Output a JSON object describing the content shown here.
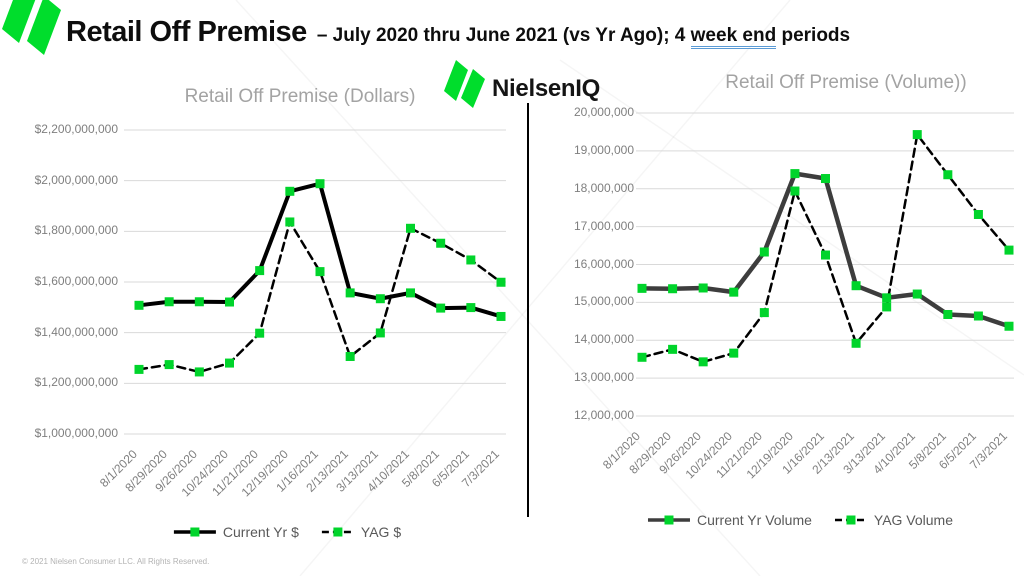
{
  "header": {
    "title": "Retail Off Premise",
    "subtitle_prefix": "– July 2020 thru June 2021 (vs Yr Ago); 4 ",
    "subtitle_underlined": "week end",
    "subtitle_suffix": " periods",
    "brand": "NielsenIQ"
  },
  "footer": {
    "copyright": "© 2021 Nielsen Consumer LLC. All Rights Reserved."
  },
  "icons": {
    "corner_mark": "nielsen-double-leaf-icon",
    "brand_mark": "nielsen-double-leaf-icon"
  },
  "colors": {
    "brand_green": "#00dd2c",
    "marker_green": "#00d42b",
    "grid": "#d9d9d9",
    "axis_text": "#7f7f7f",
    "title_text": "#a3a3a3",
    "legend_text": "#595959",
    "divider": "#000000"
  },
  "chart_data": [
    {
      "type": "line",
      "title": "Retail Off Premise (Dollars)",
      "categories": [
        "8/1/2020",
        "8/29/2020",
        "9/26/2020",
        "10/24/2020",
        "11/21/2020",
        "12/19/2020",
        "1/16/2021",
        "2/13/2021",
        "3/13/2021",
        "4/10/2021",
        "5/8/2021",
        "6/5/2021",
        "7/3/2021"
      ],
      "ylim": [
        1000000000,
        2200000000
      ],
      "grid": true,
      "legend_position": "bottom",
      "yticks": [
        {
          "value": 1000000000,
          "label": "$1,000,000,000"
        },
        {
          "value": 1200000000,
          "label": "$1,200,000,000"
        },
        {
          "value": 1400000000,
          "label": "$1,400,000,000"
        },
        {
          "value": 1600000000,
          "label": "$1,600,000,000"
        },
        {
          "value": 1800000000,
          "label": "$1,800,000,000"
        },
        {
          "value": 2000000000,
          "label": "$2,000,000,000"
        },
        {
          "value": 2200000000,
          "label": "$2,200,000,000"
        }
      ],
      "series": [
        {
          "name": "Current Yr $",
          "dash": "solid",
          "color": "#000000",
          "width": 4,
          "values": [
            1508000000,
            1522000000,
            1522000000,
            1521000000,
            1645000000,
            1958000000,
            1988000000,
            1557000000,
            1534000000,
            1557000000,
            1497000000,
            1499000000,
            1464000000
          ]
        },
        {
          "name": "YAG $",
          "dash": "dashed",
          "color": "#000000",
          "width": 2.5,
          "values": [
            1255000000,
            1274000000,
            1245000000,
            1280000000,
            1398000000,
            1837000000,
            1641000000,
            1306000000,
            1399000000,
            1812000000,
            1753000000,
            1687000000,
            1599000000
          ]
        }
      ]
    },
    {
      "type": "line",
      "title": "Retail Off Premise (Volume))",
      "categories": [
        "8/1/2020",
        "8/29/2020",
        "9/26/2020",
        "10/24/2020",
        "11/21/2020",
        "12/19/2020",
        "1/16/2021",
        "2/13/2021",
        "3/13/2021",
        "4/10/2021",
        "5/8/2021",
        "6/5/2021",
        "7/3/2021"
      ],
      "ylim": [
        12000000,
        20000000
      ],
      "grid": true,
      "legend_position": "bottom",
      "yticks": [
        {
          "value": 12000000,
          "label": "12,000,000"
        },
        {
          "value": 13000000,
          "label": "13,000,000"
        },
        {
          "value": 14000000,
          "label": "14,000,000"
        },
        {
          "value": 15000000,
          "label": "15,000,000"
        },
        {
          "value": 16000000,
          "label": "16,000,000"
        },
        {
          "value": 17000000,
          "label": "17,000,000"
        },
        {
          "value": 18000000,
          "label": "18,000,000"
        },
        {
          "value": 19000000,
          "label": "19,000,000"
        },
        {
          "value": 20000000,
          "label": "20,000,000"
        }
      ],
      "series": [
        {
          "name": "Current Yr Volume",
          "dash": "solid",
          "color": "#3d3d3d",
          "width": 4.5,
          "values": [
            15370000,
            15360000,
            15380000,
            15270000,
            16330000,
            18400000,
            18270000,
            15440000,
            15120000,
            15220000,
            14680000,
            14640000,
            14370000
          ]
        },
        {
          "name": "YAG Volume",
          "dash": "dashed",
          "color": "#000000",
          "width": 2.5,
          "values": [
            13550000,
            13760000,
            13430000,
            13660000,
            14730000,
            17940000,
            16250000,
            13920000,
            14880000,
            19430000,
            18370000,
            17320000,
            16380000
          ]
        }
      ]
    }
  ]
}
